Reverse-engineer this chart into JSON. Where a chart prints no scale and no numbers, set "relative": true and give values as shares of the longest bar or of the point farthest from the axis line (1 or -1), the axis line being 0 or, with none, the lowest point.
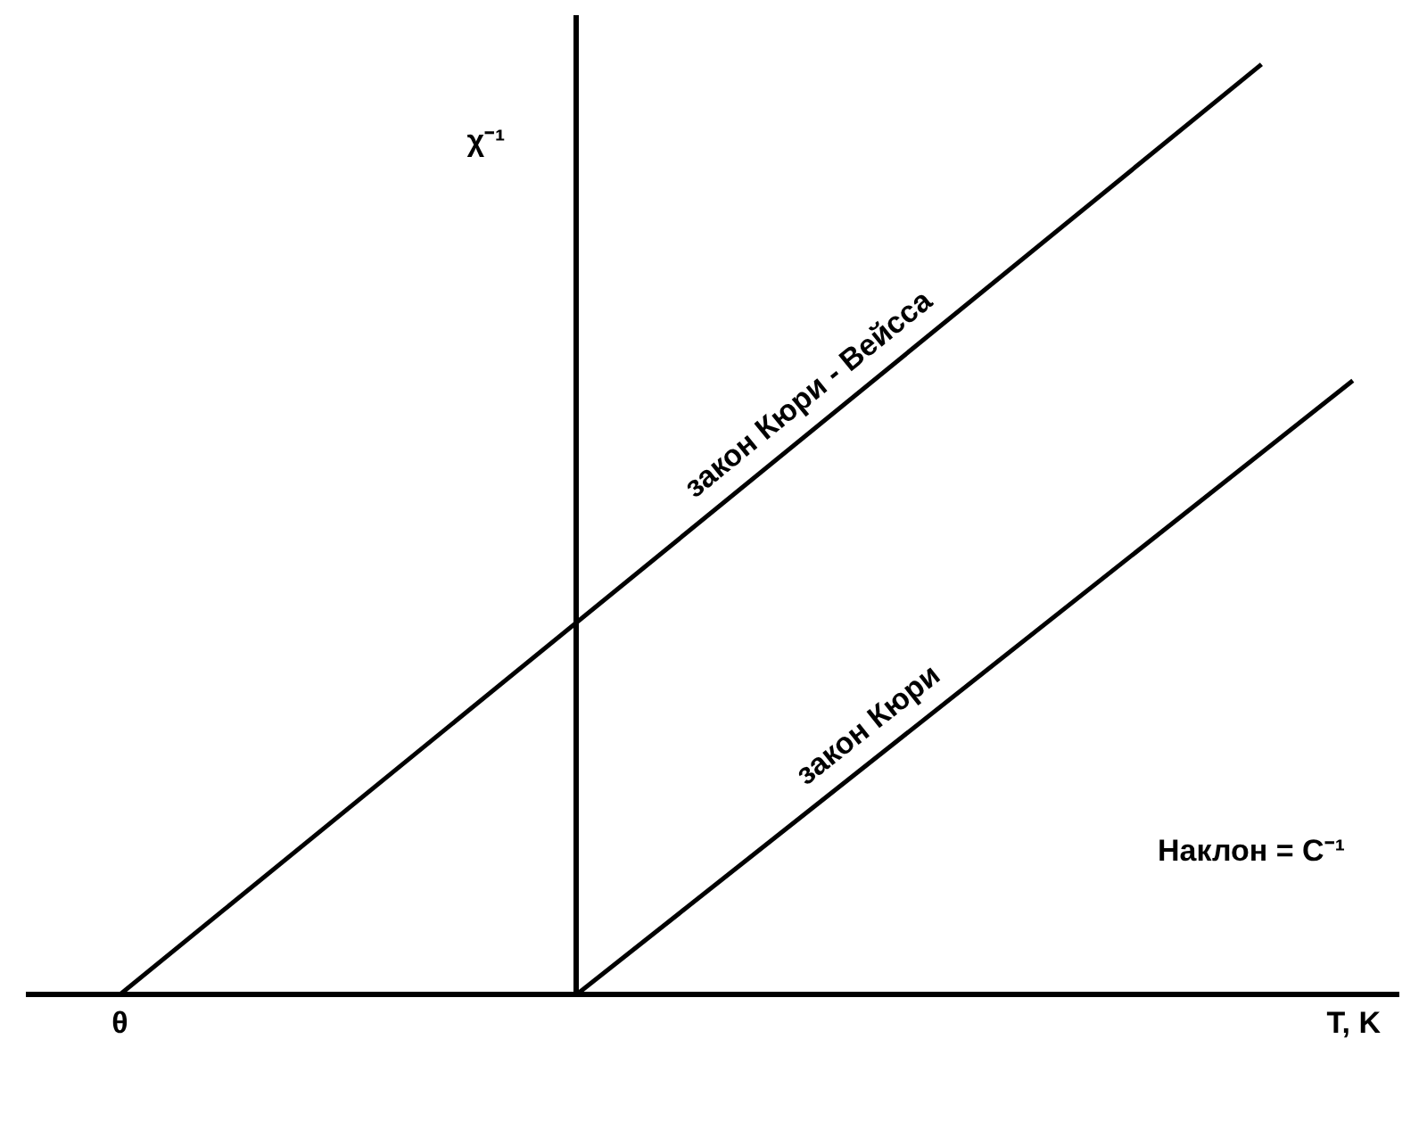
{
  "chart_data": {
    "type": "line",
    "relative": true,
    "xlabel": "T, K",
    "ylabel": "χ⁻¹",
    "marker": "none",
    "categories": [
      null,
      null,
      null,
      null,
      null,
      null,
      null,
      null,
      null,
      null,
      null,
      null,
      null,
      null,
      null,
      null,
      null,
      null,
      null,
      null,
      null,
      null,
      null,
      null,
      null,
      null,
      null,
      null,
      null,
      null,
      null
    ],
    "annotations": [
      "θ",
      "Наклон = C⁻¹"
    ],
    "series": [
      {
        "name": "закон Кюри - Вейсса",
        "color": "#000000",
        "values": [
          null,
          null,
          0,
          null,
          null,
          null,
          null,
          null,
          null,
          null,
          null,
          null,
          null,
          null,
          null,
          null,
          null,
          null,
          null,
          null,
          null,
          null,
          null,
          null,
          null,
          null,
          null,
          1,
          null,
          null,
          null
        ]
      },
      {
        "name": "закон Кюри",
        "color": "#000000",
        "values": [
          null,
          null,
          null,
          null,
          null,
          null,
          null,
          null,
          null,
          null,
          null,
          null,
          0,
          null,
          null,
          null,
          null,
          null,
          null,
          null,
          null,
          null,
          null,
          null,
          null,
          null,
          null,
          null,
          null,
          0.66,
          null
        ]
      }
    ]
  }
}
